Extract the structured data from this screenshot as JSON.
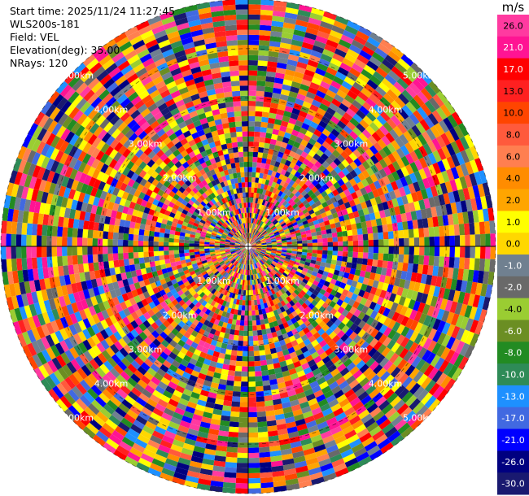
{
  "header": {
    "start_time": "Start time: 2025/11/24 11:27:45",
    "instrument": "WLS200s-181",
    "field": "Field: VEL",
    "elevation": "Elevation(deg): 35.00",
    "nrays": "NRays: 120"
  },
  "chart_data": {
    "type": "ppi-polar-heatmap",
    "field": "VEL",
    "unit": "m/s",
    "elevation_deg": 35.0,
    "n_rays": 120,
    "range_ring_labels": [
      "1.00km",
      "2.00km",
      "3.00km",
      "4.00km",
      "5.00km"
    ],
    "colorbar": {
      "ticks": [
        26.0,
        21.0,
        17.0,
        13.0,
        10.0,
        8.0,
        6.0,
        4.0,
        2.0,
        1.0,
        0.0,
        -1.0,
        -2.0,
        -4.0,
        -6.0,
        -8.0,
        -10.0,
        -13.0,
        -17.0,
        -21.0,
        -26.0,
        -30.0
      ],
      "tick_labels": [
        "26.0",
        "21.0",
        "17.0",
        "13.0",
        "10.0",
        "8.0",
        "6.0",
        "4.0",
        "2.0",
        "1.0",
        "0.0",
        "-1.0",
        "-2.0",
        "-4.0",
        "-6.0",
        "-8.0",
        "-10.0",
        "-13.0",
        "-17.0",
        "-21.0",
        "-26.0",
        "-30.0"
      ],
      "colors": [
        "#ff3aa0",
        "#ff1493",
        "#ff0000",
        "#ff2020",
        "#ff4500",
        "#ff5a3c",
        "#ff7f50",
        "#ff8c00",
        "#ffa500",
        "#ffff00",
        "#ffd700",
        "#708090",
        "#696969",
        "#9acd32",
        "#6b8e23",
        "#228b22",
        "#2e8b57",
        "#1e90ff",
        "#4169e1",
        "#0000ff",
        "#000080",
        "#191970"
      ]
    }
  }
}
